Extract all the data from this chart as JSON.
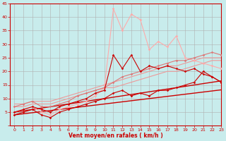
{
  "title": "",
  "xlabel": "Vent moyen/en rafales ( km/h )",
  "ylabel": "",
  "background_color": "#c8ecec",
  "grid_color": "#b0b0b0",
  "text_color": "#cc0000",
  "xlim": [
    -0.5,
    23
  ],
  "ylim": [
    0,
    45
  ],
  "yticks": [
    0,
    5,
    10,
    15,
    20,
    25,
    30,
    35,
    40,
    45
  ],
  "xticks": [
    0,
    1,
    2,
    3,
    4,
    5,
    6,
    7,
    8,
    9,
    10,
    11,
    12,
    13,
    14,
    15,
    16,
    17,
    18,
    19,
    20,
    21,
    22,
    23
  ],
  "lines": [
    {
      "x": [
        0,
        1,
        2,
        3,
        4,
        5,
        6,
        7,
        8,
        9,
        10,
        11,
        12,
        13,
        14,
        15,
        16,
        17,
        18,
        19,
        20,
        21,
        22,
        23
      ],
      "y": [
        5,
        6,
        7,
        5,
        4,
        6,
        7,
        8,
        9,
        11,
        14,
        43,
        35,
        41,
        39,
        28,
        31,
        29,
        33,
        25,
        24,
        23,
        22,
        21
      ],
      "color": "#ffaaaa",
      "lw": 0.8,
      "marker": "D",
      "markersize": 1.8,
      "alpha": 1.0,
      "zorder": 3
    },
    {
      "x": [
        0,
        1,
        2,
        3,
        4,
        5,
        6,
        7,
        8,
        9,
        10,
        11,
        12,
        13,
        14,
        15,
        16,
        17,
        18,
        19,
        20,
        21,
        22,
        23
      ],
      "y": [
        8,
        8,
        9,
        9,
        9,
        10,
        11,
        12,
        13,
        14,
        15,
        16,
        17,
        18,
        19,
        20,
        21,
        22,
        22,
        23,
        24,
        25,
        25,
        25
      ],
      "color": "#ee9999",
      "lw": 0.8,
      "marker": null,
      "markersize": 0,
      "alpha": 1.0,
      "zorder": 2
    },
    {
      "x": [
        0,
        1,
        2,
        3,
        4,
        5,
        6,
        7,
        8,
        9,
        10,
        11,
        12,
        13,
        14,
        15,
        16,
        17,
        18,
        19,
        20,
        21,
        22,
        23
      ],
      "y": [
        7,
        7,
        8,
        8,
        8,
        9,
        10,
        11,
        12,
        13,
        14,
        14,
        15,
        16,
        17,
        18,
        19,
        20,
        20,
        21,
        22,
        23,
        24,
        24
      ],
      "color": "#ee9999",
      "lw": 0.8,
      "marker": null,
      "markersize": 0,
      "alpha": 1.0,
      "zorder": 2
    },
    {
      "x": [
        0,
        1,
        2,
        3,
        4,
        5,
        6,
        7,
        8,
        9,
        10,
        11,
        12,
        13,
        14,
        15,
        16,
        17,
        18,
        19,
        20,
        21,
        22,
        23
      ],
      "y": [
        7,
        8,
        9,
        7,
        7,
        8,
        9,
        11,
        12,
        13,
        14,
        16,
        18,
        19,
        20,
        21,
        22,
        23,
        24,
        24,
        25,
        26,
        27,
        26
      ],
      "color": "#dd7777",
      "lw": 0.8,
      "marker": "D",
      "markersize": 1.8,
      "alpha": 1.0,
      "zorder": 3
    },
    {
      "x": [
        0,
        1,
        2,
        3,
        4,
        5,
        6,
        7,
        8,
        9,
        10,
        11,
        12,
        13,
        14,
        15,
        16,
        17,
        18,
        19,
        20,
        21,
        22,
        23
      ],
      "y": [
        5,
        6,
        7,
        6,
        5,
        7,
        8,
        9,
        10,
        12,
        13,
        26,
        21,
        26,
        20,
        22,
        21,
        22,
        21,
        20,
        21,
        19,
        18,
        16
      ],
      "color": "#cc0000",
      "lw": 0.8,
      "marker": "D",
      "markersize": 1.8,
      "alpha": 1.0,
      "zorder": 4
    },
    {
      "x": [
        0,
        1,
        2,
        3,
        4,
        5,
        6,
        7,
        8,
        9,
        10,
        11,
        12,
        13,
        14,
        15,
        16,
        17,
        18,
        19,
        20,
        21,
        22,
        23
      ],
      "y": [
        4,
        5,
        6,
        4,
        3,
        5,
        6,
        7,
        8,
        9,
        10,
        12,
        13,
        11,
        12,
        11,
        13,
        13,
        14,
        15,
        16,
        20,
        18,
        16
      ],
      "color": "#cc0000",
      "lw": 0.8,
      "marker": "D",
      "markersize": 1.8,
      "alpha": 1.0,
      "zorder": 4
    },
    {
      "x": [
        0,
        1,
        2,
        3,
        4,
        5,
        6,
        7,
        8,
        9,
        10,
        11,
        12,
        13,
        14,
        15,
        16,
        17,
        18,
        19,
        20,
        21,
        22,
        23
      ],
      "y": [
        5.0,
        5.5,
        6.0,
        6.5,
        7.0,
        7.5,
        8.0,
        8.5,
        9.0,
        9.5,
        10.0,
        10.5,
        11.0,
        11.5,
        12.0,
        12.5,
        13.0,
        13.5,
        14.0,
        14.5,
        15.0,
        15.5,
        16.0,
        16.5
      ],
      "color": "#cc0000",
      "lw": 1.0,
      "marker": null,
      "markersize": 0,
      "alpha": 1.0,
      "zorder": 2
    },
    {
      "x": [
        0,
        1,
        2,
        3,
        4,
        5,
        6,
        7,
        8,
        9,
        10,
        11,
        12,
        13,
        14,
        15,
        16,
        17,
        18,
        19,
        20,
        21,
        22,
        23
      ],
      "y": [
        4.0,
        4.4,
        4.8,
        5.2,
        5.6,
        6.0,
        6.4,
        6.8,
        7.2,
        7.6,
        8.0,
        8.4,
        8.8,
        9.2,
        9.6,
        10.0,
        10.4,
        10.8,
        11.2,
        11.6,
        12.0,
        12.4,
        12.8,
        13.2
      ],
      "color": "#cc0000",
      "lw": 1.0,
      "marker": null,
      "markersize": 0,
      "alpha": 1.0,
      "zorder": 2
    }
  ]
}
